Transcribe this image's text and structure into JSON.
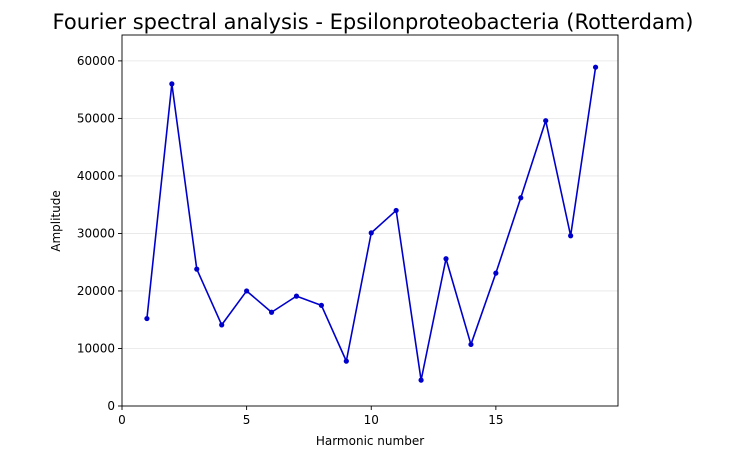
{
  "chart_data": {
    "type": "line",
    "title": "Fourier spectral analysis - Epsilonproteobacteria (Rotterdam)",
    "xlabel": "Harmonic number",
    "ylabel": "Amplitude",
    "xlim": [
      0,
      19.9
    ],
    "ylim": [
      0,
      64500
    ],
    "xticks": [
      0,
      5,
      10,
      15
    ],
    "xtick_labels": [
      "0",
      "5",
      "10",
      "15"
    ],
    "yticks": [
      0,
      10000,
      20000,
      30000,
      40000,
      50000,
      60000
    ],
    "ytick_labels": [
      "0",
      "10000",
      "20000",
      "30000",
      "40000",
      "50000",
      "60000"
    ],
    "grid": "horizontal",
    "legend": "none",
    "x": [
      1,
      2,
      3,
      4,
      5,
      6,
      7,
      8,
      9,
      10,
      11,
      12,
      13,
      14,
      15,
      16,
      17,
      18,
      19
    ],
    "series": [
      {
        "values": [
          15200,
          56000,
          23800,
          14100,
          20000,
          16300,
          19100,
          17500,
          7800,
          30100,
          34000,
          4500,
          25600,
          10700,
          23100,
          36200,
          49600,
          29600,
          58900
        ],
        "color": "#0000cc"
      }
    ]
  }
}
